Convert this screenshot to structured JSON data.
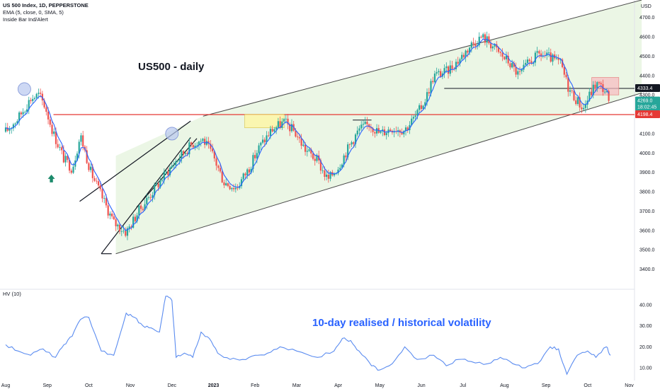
{
  "header": {
    "symbol_line": "US 500 Index, 1D, PEPPERSTONE",
    "ema_line": "EMA (5, close, 0, SMA, 5)",
    "indicator_line": "Inside Bar Ind/Alert",
    "hv_label": "HV (10)"
  },
  "annotations": {
    "main_label": "US500 - daily",
    "hv_label": "10-day realised / historical volatility"
  },
  "currency": "USD",
  "colors": {
    "up": "#26a69a",
    "down": "#ef5350",
    "ema": "#2962ff",
    "hv": "#5b8cf0",
    "channel_fill": "#e8f5e1",
    "level_red": "#e53935",
    "level_black": "#131722",
    "highlight_yellow": "#fff59d",
    "highlight_red": "#f8bbc0",
    "circle_blue": "#b8c7f0",
    "arrow_green": "#1b8a6b"
  },
  "price_badges": {
    "level_upper": "4333.4",
    "last_price": "4269.0",
    "countdown": "18:02:45",
    "level_lower": "4198.4"
  },
  "chart_data": [
    {
      "type": "candlestick",
      "title": "US 500 Index, 1D, PEPPERSTONE",
      "x_labels": [
        "Aug",
        "Sep",
        "Oct",
        "Nov",
        "Dec",
        "2023",
        "Feb",
        "Mar",
        "Apr",
        "May",
        "Jun",
        "Jul",
        "Aug",
        "Sep",
        "Oct",
        "Nov"
      ],
      "y_ticks": [
        3400,
        3500,
        3600,
        3700,
        3800,
        3900,
        4000,
        4100,
        4200,
        4300,
        4400,
        4500,
        4600,
        4700
      ],
      "ylim": [
        3300,
        4790
      ],
      "xlim_months": [
        0,
        15.3
      ],
      "path_points": [
        [
          0.0,
          4110
        ],
        [
          0.3,
          4180
        ],
        [
          0.6,
          4280
        ],
        [
          0.8,
          4300
        ],
        [
          0.95,
          4240
        ],
        [
          1.15,
          4100
        ],
        [
          1.4,
          3970
        ],
        [
          1.6,
          3920
        ],
        [
          1.8,
          4090
        ],
        [
          2.05,
          3900
        ],
        [
          2.3,
          3780
        ],
        [
          2.6,
          3640
        ],
        [
          2.9,
          3590
        ],
        [
          3.2,
          3700
        ],
        [
          3.5,
          3790
        ],
        [
          3.8,
          3880
        ],
        [
          4.1,
          3960
        ],
        [
          4.5,
          4050
        ],
        [
          4.75,
          4070
        ],
        [
          5.0,
          3980
        ],
        [
          5.25,
          3850
        ],
        [
          5.55,
          3820
        ],
        [
          5.85,
          3920
        ],
        [
          6.1,
          4030
        ],
        [
          6.4,
          4120
        ],
        [
          6.7,
          4160
        ],
        [
          6.95,
          4110
        ],
        [
          7.2,
          4020
        ],
        [
          7.5,
          3960
        ],
        [
          7.75,
          3860
        ],
        [
          8.0,
          3930
        ],
        [
          8.25,
          4030
        ],
        [
          8.5,
          4120
        ],
        [
          8.75,
          4150
        ],
        [
          9.0,
          4100
        ],
        [
          9.3,
          4130
        ],
        [
          9.6,
          4120
        ],
        [
          9.9,
          4200
        ],
        [
          10.1,
          4280
        ],
        [
          10.3,
          4400
        ],
        [
          10.6,
          4420
        ],
        [
          10.9,
          4480
        ],
        [
          11.2,
          4560
        ],
        [
          11.45,
          4600
        ],
        [
          11.6,
          4580
        ],
        [
          11.85,
          4520
        ],
        [
          12.1,
          4470
        ],
        [
          12.35,
          4400
        ],
        [
          12.6,
          4470
        ],
        [
          12.85,
          4510
        ],
        [
          13.1,
          4490
        ],
        [
          13.35,
          4460
        ],
        [
          13.55,
          4330
        ],
        [
          13.75,
          4270
        ],
        [
          13.9,
          4230
        ],
        [
          14.05,
          4300
        ],
        [
          14.2,
          4360
        ],
        [
          14.4,
          4330
        ],
        [
          14.55,
          4269
        ]
      ],
      "hv_series": {
        "name": "HV (10)",
        "y_ticks": [
          10.0,
          20.0,
          30.0,
          40.0
        ],
        "ylim": [
          4,
          47
        ],
        "points": [
          [
            0.0,
            21
          ],
          [
            0.3,
            18
          ],
          [
            0.6,
            16
          ],
          [
            0.9,
            19
          ],
          [
            1.2,
            15
          ],
          [
            1.4,
            21
          ],
          [
            1.6,
            25
          ],
          [
            1.8,
            33
          ],
          [
            2.0,
            34
          ],
          [
            2.3,
            18
          ],
          [
            2.6,
            16
          ],
          [
            2.9,
            36
          ],
          [
            3.1,
            34
          ],
          [
            3.3,
            30
          ],
          [
            3.5,
            29
          ],
          [
            3.7,
            27
          ],
          [
            3.85,
            44
          ],
          [
            4.0,
            42
          ],
          [
            4.1,
            15
          ],
          [
            4.3,
            17
          ],
          [
            4.5,
            15
          ],
          [
            4.7,
            27
          ],
          [
            4.9,
            24
          ],
          [
            5.1,
            17
          ],
          [
            5.4,
            14
          ],
          [
            5.7,
            14
          ],
          [
            6.0,
            16
          ],
          [
            6.3,
            17
          ],
          [
            6.6,
            20
          ],
          [
            7.0,
            18
          ],
          [
            7.5,
            15
          ],
          [
            7.9,
            18
          ],
          [
            8.1,
            24
          ],
          [
            8.3,
            23
          ],
          [
            8.5,
            18
          ],
          [
            8.8,
            11
          ],
          [
            9.0,
            9
          ],
          [
            9.3,
            12
          ],
          [
            9.6,
            20
          ],
          [
            9.9,
            14
          ],
          [
            10.3,
            16
          ],
          [
            10.6,
            11
          ],
          [
            10.9,
            14
          ],
          [
            11.2,
            13
          ],
          [
            11.6,
            12
          ],
          [
            11.9,
            15
          ],
          [
            12.2,
            12
          ],
          [
            12.5,
            10
          ],
          [
            12.8,
            12
          ],
          [
            13.1,
            20
          ],
          [
            13.3,
            19
          ],
          [
            13.5,
            7
          ],
          [
            13.75,
            16
          ],
          [
            14.0,
            18
          ],
          [
            14.2,
            15
          ],
          [
            14.45,
            20
          ],
          [
            14.55,
            16
          ]
        ]
      },
      "levels": [
        4333.4,
        4198.4
      ],
      "channel": {
        "upper": [
          [
            4.75,
            4190
          ],
          [
            15.3,
            4790
          ]
        ],
        "lower": [
          [
            2.65,
            3480
          ],
          [
            15.3,
            4310
          ]
        ]
      }
    }
  ]
}
